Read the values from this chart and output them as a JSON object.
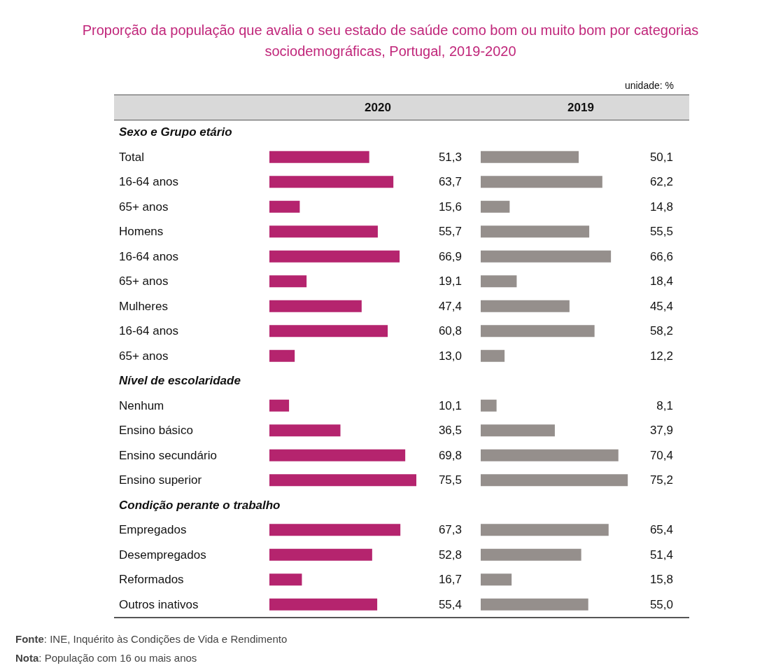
{
  "chart_data": [
    {
      "type": "bar",
      "orientation": "horizontal",
      "tick_labels": "y",
      "title": "Proporção da população que avalia o seu estado de saúde como bom ou muito bom por categorias sociodemográficas, Portugal, 2019-2020",
      "annotations": [
        "unidade: %",
        "Fonte: INE, Inquérito às Condições de Vida e Rendimento",
        "Nota: População com 16 ou mais anos"
      ],
      "categories": [
        "Sexo e Grupo etário",
        "Total",
        "16-64 anos",
        "65+ anos",
        "Homens",
        "16-64 anos",
        "65+ anos",
        "Mulheres",
        "16-64 anos",
        "65+ anos",
        "Nível de escolaridade",
        "Nenhum",
        "Ensino básico",
        "Ensino secundário",
        "Ensino superior",
        "Condição perante o trabalho",
        "Empregados",
        "Desempregados",
        "Reformados",
        "Outros inativos"
      ],
      "series": [
        {
          "name": "2020",
          "color": "#b5246e",
          "values": [
            null,
            51.3,
            63.7,
            15.6,
            55.7,
            66.9,
            19.1,
            47.4,
            60.8,
            13.0,
            null,
            10.1,
            36.5,
            69.8,
            75.5,
            null,
            67.3,
            52.8,
            16.7,
            55.4
          ],
          "value_labels": [
            null,
            "51,3",
            "63,7",
            "15,6",
            "55,7",
            "66,9",
            "19,1",
            "47,4",
            "60,8",
            "13,0",
            null,
            "10,1",
            "36,5",
            "69,8",
            "75,5",
            null,
            "67,3",
            "52,8",
            "16,7",
            "55,4"
          ]
        }
      ]
    },
    {
      "type": "bar",
      "orientation": "horizontal",
      "tick_labels": false,
      "categories": [
        null,
        null,
        null,
        null,
        null,
        null,
        null,
        null,
        null,
        null,
        null,
        null,
        null,
        null,
        null,
        null,
        null,
        null,
        null,
        null
      ],
      "series": [
        {
          "name": "2019",
          "color": "#958f8c",
          "values": [
            null,
            50.1,
            62.2,
            14.8,
            55.5,
            66.6,
            18.4,
            45.4,
            58.2,
            12.2,
            null,
            8.1,
            37.9,
            70.4,
            75.2,
            null,
            65.4,
            51.4,
            15.8,
            55.0
          ],
          "value_labels": [
            null,
            "50,1",
            "62,2",
            "14,8",
            "55,5",
            "66,6",
            "18,4",
            "45,4",
            "58,2",
            "12,2",
            null,
            "8,1",
            "37,9",
            "70,4",
            "75,2",
            null,
            "65,4",
            "51,4",
            "15,8",
            "55,0"
          ]
        }
      ]
    }
  ]
}
